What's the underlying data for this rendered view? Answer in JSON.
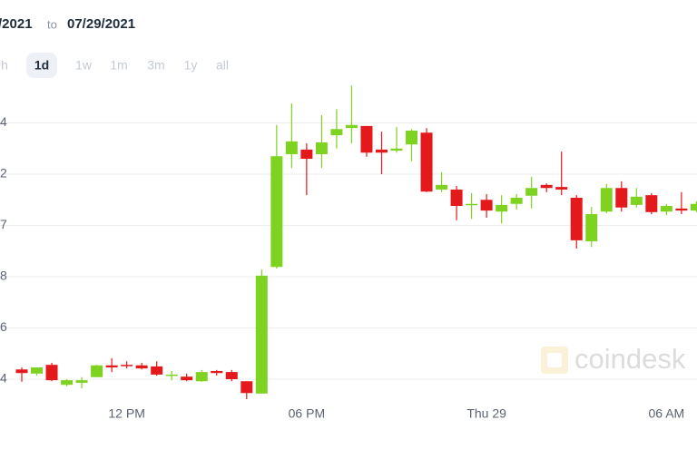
{
  "header": {
    "date_from": "/2021",
    "separator": "to",
    "date_to": "07/29/2021"
  },
  "ranges": [
    "h",
    "1d",
    "1w",
    "1m",
    "3m",
    "1y",
    "all"
  ],
  "selected_range": "1d",
  "watermark": "coindesk",
  "chart_data": {
    "type": "candlestick",
    "categories": [
      null,
      null,
      null,
      null,
      null,
      null,
      null,
      "12 PM",
      null,
      null,
      null,
      null,
      null,
      null,
      null,
      null,
      null,
      null,
      null,
      "06 PM",
      null,
      null,
      null,
      null,
      null,
      null,
      null,
      null,
      null,
      null,
      null,
      "Thu 29",
      null,
      null,
      null,
      null,
      null,
      null,
      null,
      null,
      null,
      null,
      null,
      "06 AM",
      null,
      null
    ],
    "open": [
      0.19,
      0.11,
      0.28,
      -0.11,
      -0.07,
      0.04,
      0.27,
      0.28,
      0.27,
      0.25,
      0.07,
      0.05,
      -0.04,
      0.16,
      0.14,
      -0.04,
      -0.28,
      2.19,
      4.39,
      4.48,
      4.39,
      4.76,
      4.9,
      4.94,
      4.48,
      4.46,
      4.58,
      4.81,
      3.7,
      3.7,
      3.4,
      3.5,
      3.27,
      3.42,
      3.58,
      3.79,
      3.75,
      3.54,
      2.69,
      3.27,
      3.73,
      3.4,
      3.59,
      3.27,
      3.33,
      3.29
    ],
    "high": [
      0.23,
      0.23,
      0.32,
      0,
      0.04,
      0.28,
      0.41,
      0.35,
      0.32,
      0.35,
      0.16,
      0.11,
      0.18,
      0.18,
      0.18,
      -0.04,
      2.14,
      4.96,
      5.38,
      4.6,
      5.15,
      5.27,
      5.73,
      4.94,
      4.83,
      4.92,
      4.88,
      4.9,
      4.04,
      3.77,
      3.63,
      3.61,
      3.59,
      3.61,
      3.95,
      3.82,
      4.44,
      3.59,
      3.36,
      3.81,
      3.86,
      3.73,
      3.63,
      3.42,
      3.65,
      3.47
    ],
    "low": [
      -0.05,
      0.07,
      -0.04,
      -0.14,
      -0.18,
      0.04,
      0.14,
      0.21,
      0.19,
      0.07,
      -0.02,
      -0.04,
      -0.05,
      0.07,
      -0.04,
      -0.39,
      -0.28,
      2.16,
      4.12,
      3.59,
      4.12,
      4.5,
      4.6,
      4.34,
      4.0,
      4.42,
      4.25,
      3.65,
      3.65,
      3.1,
      3.13,
      3.15,
      3.04,
      3.31,
      3.33,
      3.65,
      3.59,
      2.55,
      2.58,
      3.24,
      3.27,
      3.35,
      3.22,
      3.2,
      3.22,
      3.26
    ],
    "close": [
      0.12,
      0.23,
      -0.02,
      -0.02,
      -0.02,
      0.27,
      0.23,
      0.27,
      0.21,
      0.09,
      0.09,
      -0.02,
      0.14,
      0.12,
      0,
      -0.27,
      2.02,
      4.35,
      4.64,
      4.3,
      4.62,
      4.88,
      4.96,
      4.42,
      4.42,
      4.5,
      4.85,
      3.66,
      3.79,
      3.38,
      3.42,
      3.29,
      3.4,
      3.54,
      3.73,
      3.73,
      3.7,
      2.71,
      3.22,
      3.73,
      3.35,
      3.56,
      3.26,
      3.38,
      3.29,
      3.42
    ],
    "up_color": "#7ed321",
    "down_color": "#e3191b",
    "ylim": [
      -0.5,
      5.8
    ],
    "yticks": [
      {
        "value": 0,
        "label": "4"
      },
      {
        "value": 1,
        "label": "6"
      },
      {
        "value": 2,
        "label": "8"
      },
      {
        "value": 3,
        "label": "7"
      },
      {
        "value": 4,
        "label": "2"
      },
      {
        "value": 5,
        "label": "4"
      }
    ],
    "grid": true
  }
}
